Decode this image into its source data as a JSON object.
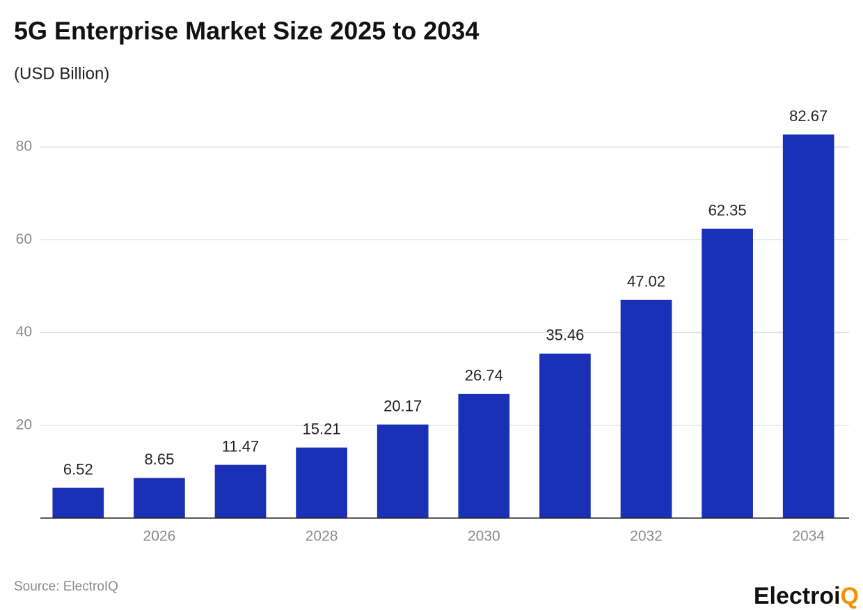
{
  "chart_data": {
    "type": "bar",
    "title": "5G Enterprise Market Size 2025 to 2034",
    "subtitle": "(USD Billion)",
    "x": [
      2025,
      2026,
      2027,
      2028,
      2029,
      2030,
      2031,
      2032,
      2033,
      2034
    ],
    "values": [
      6.52,
      8.65,
      11.47,
      15.21,
      20.17,
      26.74,
      35.46,
      47.02,
      62.35,
      82.67
    ],
    "color": "#1a30b7",
    "xlim": [
      2024.5,
      2034.5
    ],
    "xticks": [
      2026,
      2028,
      2030,
      2032,
      2034
    ],
    "ylim": [
      0,
      85
    ],
    "yticks": [
      20,
      40,
      60,
      80
    ],
    "grid": true,
    "source": "Source: ElectroIQ",
    "logo": {
      "main": "Electroi",
      "accent": "Q"
    }
  }
}
